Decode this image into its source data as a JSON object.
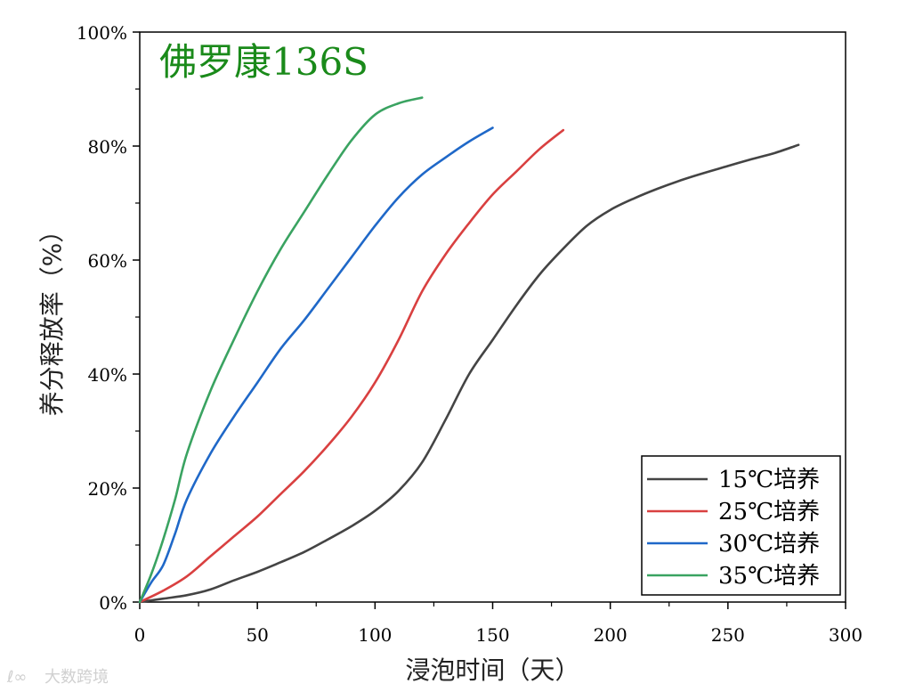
{
  "watermark": "大数跨境",
  "chart_data": {
    "type": "line",
    "title": "佛罗康136S",
    "xlabel": "浸泡时间（天）",
    "ylabel": "养分释放率（%）",
    "xlim": [
      0,
      300
    ],
    "ylim": [
      0,
      100
    ],
    "x_ticks": [
      0,
      50,
      100,
      150,
      200,
      250,
      300
    ],
    "y_ticks": [
      0,
      20,
      40,
      60,
      80,
      100
    ],
    "y_tick_labels": [
      "0%",
      "20%",
      "40%",
      "60%",
      "80%",
      "100%"
    ],
    "grid": false,
    "legend_position": "bottom-right",
    "series": [
      {
        "name": "15℃培养",
        "color": "#444444",
        "x": [
          0,
          10,
          20,
          30,
          40,
          50,
          60,
          70,
          80,
          90,
          100,
          110,
          120,
          130,
          140,
          150,
          160,
          170,
          180,
          190,
          200,
          210,
          220,
          230,
          240,
          250,
          260,
          270,
          280
        ],
        "y": [
          0,
          0.6,
          1.2,
          2.2,
          3.8,
          5.3,
          7.0,
          8.8,
          11.0,
          13.3,
          16.0,
          19.5,
          24.5,
          32.0,
          40.0,
          46.0,
          52.0,
          57.5,
          62.0,
          66.0,
          68.8,
          70.8,
          72.5,
          74.0,
          75.3,
          76.5,
          77.7,
          78.8,
          80.2
        ]
      },
      {
        "name": "25℃培养",
        "color": "#d94040",
        "x": [
          0,
          10,
          20,
          30,
          40,
          50,
          60,
          70,
          80,
          90,
          100,
          110,
          120,
          130,
          140,
          150,
          160,
          170,
          180
        ],
        "y": [
          0,
          2.0,
          4.5,
          8.0,
          11.5,
          15.0,
          19.0,
          23.0,
          27.5,
          32.5,
          38.5,
          46.0,
          54.5,
          61.0,
          66.5,
          71.5,
          75.5,
          79.5,
          82.8
        ]
      },
      {
        "name": "30℃培养",
        "color": "#1f68c8",
        "x": [
          0,
          5,
          10,
          15,
          20,
          30,
          40,
          50,
          60,
          70,
          80,
          90,
          100,
          110,
          120,
          130,
          140,
          150
        ],
        "y": [
          0,
          3.5,
          6.5,
          12.0,
          18.0,
          26.0,
          32.5,
          38.5,
          44.5,
          49.5,
          55.0,
          60.5,
          66.0,
          71.0,
          75.0,
          78.0,
          80.8,
          83.2
        ]
      },
      {
        "name": "35℃培养",
        "color": "#3aa361",
        "x": [
          0,
          5,
          10,
          15,
          20,
          30,
          40,
          50,
          60,
          70,
          80,
          90,
          100,
          110,
          120
        ],
        "y": [
          0,
          5.0,
          11.0,
          18.0,
          26.0,
          37.0,
          46.0,
          54.5,
          62.0,
          68.5,
          75.0,
          81.0,
          85.5,
          87.5,
          88.5
        ]
      }
    ]
  }
}
